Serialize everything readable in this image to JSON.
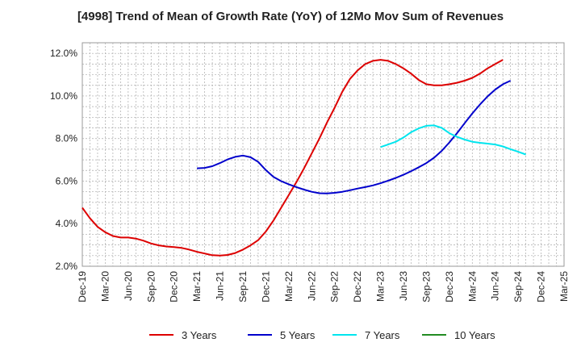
{
  "chart_data": {
    "type": "line",
    "title": "[4998]  Trend of Mean of Growth Rate (YoY) of 12Mo Mov Sum of Revenues",
    "xlabel": "",
    "ylabel": "",
    "ylim": [
      2.0,
      12.5
    ],
    "yticks": [
      2.0,
      4.0,
      6.0,
      8.0,
      10.0,
      12.0
    ],
    "ytick_labels": [
      "2.0%",
      "4.0%",
      "6.0%",
      "8.0%",
      "10.0%",
      "12.0%"
    ],
    "x_start": "Dec-19",
    "x_end": "Mar-25",
    "xtick_labels": [
      "Dec-19",
      "Mar-20",
      "Jun-20",
      "Sep-20",
      "Dec-20",
      "Mar-21",
      "Jun-21",
      "Sep-21",
      "Dec-21",
      "Mar-22",
      "Jun-22",
      "Sep-22",
      "Dec-22",
      "Mar-23",
      "Jun-23",
      "Sep-23",
      "Dec-23",
      "Mar-24",
      "Jun-24",
      "Sep-24",
      "Dec-24",
      "Mar-25"
    ],
    "grid": true,
    "legend_position": "bottom",
    "series": [
      {
        "name": "3 Years",
        "color": "#dd0000",
        "start_index": 0,
        "values": [
          4.75,
          4.25,
          3.85,
          3.6,
          3.42,
          3.35,
          3.35,
          3.3,
          3.2,
          3.07,
          2.98,
          2.93,
          2.9,
          2.86,
          2.78,
          2.68,
          2.6,
          2.52,
          2.5,
          2.53,
          2.62,
          2.78,
          2.98,
          3.23,
          3.63,
          4.15,
          4.75,
          5.35,
          5.95,
          6.6,
          7.3,
          8.0,
          8.75,
          9.45,
          10.2,
          10.8,
          11.2,
          11.5,
          11.65,
          11.7,
          11.65,
          11.5,
          11.3,
          11.05,
          10.75,
          10.55,
          10.5,
          10.5,
          10.55,
          10.62,
          10.72,
          10.85,
          11.05,
          11.3,
          11.5,
          11.7
        ]
      },
      {
        "name": "5 Years",
        "color": "#0000cc",
        "start_index": 15,
        "values": [
          6.6,
          6.62,
          6.7,
          6.85,
          7.02,
          7.14,
          7.2,
          7.12,
          6.9,
          6.52,
          6.2,
          6.0,
          5.85,
          5.72,
          5.6,
          5.5,
          5.43,
          5.42,
          5.45,
          5.5,
          5.57,
          5.65,
          5.72,
          5.8,
          5.9,
          6.02,
          6.15,
          6.3,
          6.47,
          6.65,
          6.85,
          7.1,
          7.42,
          7.82,
          8.25,
          8.72,
          9.18,
          9.6,
          9.98,
          10.3,
          10.55,
          10.72
        ]
      },
      {
        "name": "7 Years",
        "color": "#00e5ee",
        "start_index": 39,
        "values": [
          7.6,
          7.72,
          7.85,
          8.05,
          8.3,
          8.48,
          8.6,
          8.62,
          8.5,
          8.25,
          8.08,
          7.95,
          7.85,
          7.8,
          7.76,
          7.72,
          7.63,
          7.5,
          7.38,
          7.25
        ]
      },
      {
        "name": "10 Years",
        "color": "#228b22",
        "start_index": 0,
        "values": []
      }
    ]
  }
}
